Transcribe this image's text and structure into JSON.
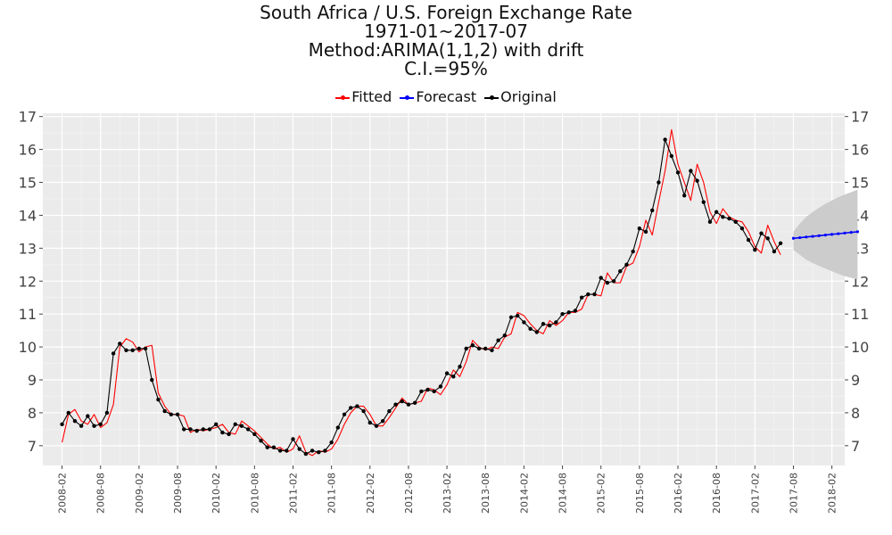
{
  "title_lines": [
    "South Africa / U.S. Foreign Exchange Rate",
    "1971-01~2017-07",
    "Method:ARIMA(1,1,2) with drift",
    "C.I.=95%"
  ],
  "legend": [
    {
      "label": "Fitted",
      "color": "#ff0000"
    },
    {
      "label": "Forecast",
      "color": "#0000ff"
    },
    {
      "label": "Original",
      "color": "#000000"
    }
  ],
  "chart_data": {
    "type": "line",
    "xlim": [
      "2007-11",
      "2018-04"
    ],
    "ylim": [
      6.4,
      17.1
    ],
    "y_ticks": [
      7,
      8,
      9,
      10,
      11,
      12,
      13,
      14,
      15,
      16,
      17
    ],
    "x_ticks": [
      "2008-02",
      "2008-08",
      "2009-02",
      "2009-08",
      "2010-02",
      "2010-08",
      "2011-02",
      "2011-08",
      "2012-02",
      "2012-08",
      "2013-02",
      "2013-08",
      "2014-02",
      "2014-08",
      "2015-02",
      "2015-08",
      "2016-02",
      "2016-08",
      "2017-02",
      "2017-08",
      "2018-02"
    ],
    "background": "#ebebeb",
    "grid": true,
    "legend_position": "top",
    "original": {
      "start": "2008-02",
      "color": "#000000",
      "values": [
        7.65,
        8.0,
        7.75,
        7.6,
        7.9,
        7.6,
        7.65,
        8.0,
        9.8,
        10.1,
        9.9,
        9.9,
        9.95,
        9.95,
        9.0,
        8.4,
        8.05,
        7.95,
        7.95,
        7.5,
        7.5,
        7.45,
        7.5,
        7.5,
        7.65,
        7.4,
        7.35,
        7.65,
        7.6,
        7.5,
        7.35,
        7.15,
        6.95,
        6.95,
        6.85,
        6.85,
        7.2,
        6.9,
        6.75,
        6.85,
        6.8,
        6.85,
        7.1,
        7.55,
        7.95,
        8.15,
        8.2,
        8.05,
        7.7,
        7.6,
        7.75,
        8.05,
        8.25,
        8.35,
        8.25,
        8.3,
        8.65,
        8.7,
        8.65,
        8.8,
        9.2,
        9.1,
        9.4,
        9.95,
        10.05,
        9.95,
        9.95,
        9.9,
        10.2,
        10.35,
        10.9,
        10.95,
        10.75,
        10.55,
        10.45,
        10.7,
        10.65,
        10.75,
        11.0,
        11.05,
        11.1,
        11.5,
        11.6,
        11.6,
        12.1,
        11.95,
        12.0,
        12.3,
        12.5,
        12.9,
        13.6,
        13.5,
        14.15,
        15.0,
        16.3,
        15.8,
        15.3,
        14.6,
        15.35,
        15.05,
        14.4,
        13.8,
        14.1,
        13.95,
        13.9,
        13.8,
        13.6,
        13.25,
        12.95,
        13.45,
        13.3,
        12.9,
        13.15
      ]
    },
    "fitted": {
      "start": "2008-02",
      "color": "#ff0000",
      "values": [
        7.1,
        7.95,
        8.1,
        7.75,
        7.65,
        7.95,
        7.55,
        7.7,
        8.25,
        10.0,
        10.25,
        10.15,
        9.85,
        10.0,
        10.05,
        8.6,
        8.2,
        7.95,
        7.95,
        7.9,
        7.4,
        7.5,
        7.45,
        7.5,
        7.55,
        7.65,
        7.4,
        7.35,
        7.75,
        7.6,
        7.45,
        7.25,
        7.05,
        6.9,
        6.95,
        6.8,
        6.9,
        7.3,
        6.8,
        6.7,
        6.85,
        6.8,
        6.9,
        7.2,
        7.65,
        8.0,
        8.2,
        8.2,
        7.95,
        7.6,
        7.6,
        7.85,
        8.15,
        8.45,
        8.25,
        8.3,
        8.35,
        8.75,
        8.7,
        8.55,
        8.85,
        9.3,
        9.1,
        9.55,
        10.2,
        10.0,
        9.9,
        10.0,
        9.95,
        10.3,
        10.4,
        11.05,
        10.95,
        10.7,
        10.5,
        10.4,
        10.8,
        10.65,
        10.8,
        11.05,
        11.05,
        11.15,
        11.6,
        11.6,
        11.55,
        12.25,
        11.95,
        11.95,
        12.45,
        12.55,
        13.05,
        13.85,
        13.4,
        14.4,
        15.35,
        16.6,
        15.55,
        15.0,
        14.45,
        15.55,
        15.0,
        14.1,
        13.75,
        14.2,
        13.95,
        13.85,
        13.8,
        13.5,
        13.05,
        12.85,
        13.7,
        13.2,
        12.8
      ]
    },
    "forecast": {
      "start": "2017-08",
      "color": "#0000ff",
      "values": [
        13.3,
        13.32,
        13.34,
        13.36,
        13.38,
        13.4,
        13.42,
        13.44,
        13.46,
        13.48,
        13.5
      ],
      "ci_upper": [
        13.5,
        13.75,
        13.95,
        14.1,
        14.23,
        14.35,
        14.45,
        14.55,
        14.63,
        14.7,
        14.78
      ],
      "ci_lower": [
        12.95,
        12.8,
        12.65,
        12.55,
        12.46,
        12.38,
        12.3,
        12.22,
        12.15,
        12.1,
        12.05
      ],
      "ci_color": "#cccccc"
    }
  }
}
